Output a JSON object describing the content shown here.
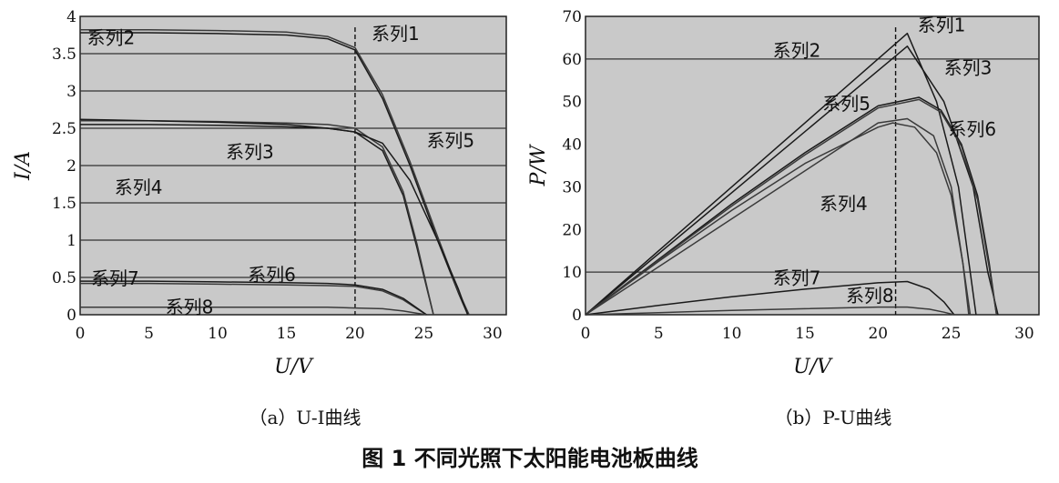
{
  "figure_caption": "图 1  不同光照下太阳能电池板曲线",
  "chart_data": [
    {
      "type": "line",
      "subcaption": "（a）U-I曲线",
      "xlabel": "U/V",
      "ylabel": "I/A",
      "xlim": [
        0,
        31
      ],
      "ylim": [
        0,
        4
      ],
      "xticks": [
        "0",
        "5",
        "10",
        "15",
        "20",
        "25",
        "30"
      ],
      "yticks": [
        "0",
        "0.5",
        "1",
        "1.5",
        "2",
        "2.5",
        "3",
        "3.5",
        "4"
      ],
      "grid": "horizontal",
      "vline_x": 20,
      "series": [
        {
          "name": "系列1",
          "x": [
            0,
            5,
            10,
            15,
            18,
            20,
            22,
            24,
            26,
            27.5,
            28.2
          ],
          "y": [
            3.78,
            3.78,
            3.77,
            3.75,
            3.7,
            3.55,
            2.9,
            2.0,
            1.0,
            0.3,
            0
          ]
        },
        {
          "name": "系列2",
          "x": [
            0,
            5,
            10,
            15,
            18,
            20,
            22,
            24,
            26,
            27.5,
            28.3
          ],
          "y": [
            3.82,
            3.82,
            3.81,
            3.79,
            3.73,
            3.58,
            2.95,
            2.05,
            1.05,
            0.32,
            0
          ]
        },
        {
          "name": "系列3",
          "x": [
            0,
            5,
            10,
            15,
            18,
            20,
            22,
            23.5,
            24.5,
            25.3,
            25.7
          ],
          "y": [
            2.55,
            2.55,
            2.54,
            2.52,
            2.5,
            2.45,
            2.2,
            1.6,
            0.9,
            0.3,
            0
          ]
        },
        {
          "name": "系列4",
          "x": [
            0,
            5,
            10,
            15,
            18,
            20,
            22,
            23.5,
            24.5,
            25.3,
            25.7
          ],
          "y": [
            2.6,
            2.6,
            2.59,
            2.57,
            2.55,
            2.5,
            2.25,
            1.65,
            0.95,
            0.32,
            0
          ]
        },
        {
          "name": "系列5",
          "x": [
            0,
            5,
            10,
            15,
            18,
            20,
            22,
            24,
            26,
            27.5,
            28.2
          ],
          "y": [
            2.62,
            2.6,
            2.58,
            2.55,
            2.5,
            2.45,
            2.3,
            1.8,
            1.0,
            0.35,
            0
          ]
        },
        {
          "name": "系列6",
          "x": [
            0,
            5,
            10,
            15,
            18,
            20,
            22,
            23.5,
            24.5,
            25.2
          ],
          "y": [
            0.42,
            0.42,
            0.41,
            0.4,
            0.39,
            0.38,
            0.32,
            0.2,
            0.08,
            0
          ]
        },
        {
          "name": "系列7",
          "x": [
            0,
            5,
            10,
            15,
            18,
            20,
            22,
            23.5,
            24.5,
            25.2
          ],
          "y": [
            0.45,
            0.45,
            0.44,
            0.43,
            0.42,
            0.4,
            0.34,
            0.22,
            0.09,
            0
          ]
        },
        {
          "name": "系列8",
          "x": [
            0,
            5,
            10,
            15,
            18,
            20,
            22,
            23.5,
            24.5,
            25.2
          ],
          "y": [
            0.1,
            0.1,
            0.1,
            0.1,
            0.1,
            0.09,
            0.08,
            0.05,
            0.02,
            0
          ]
        }
      ],
      "labels": [
        {
          "text": "系列2",
          "x": 0.5,
          "y": 3.63
        },
        {
          "text": "系列1",
          "x": 21.2,
          "y": 3.68
        },
        {
          "text": "系列5",
          "x": 25.2,
          "y": 2.25
        },
        {
          "text": "系列3",
          "x": 10.6,
          "y": 2.1
        },
        {
          "text": "系列4",
          "x": 2.5,
          "y": 1.62
        },
        {
          "text": "系列7",
          "x": 0.8,
          "y": 0.4
        },
        {
          "text": "系列6",
          "x": 12.2,
          "y": 0.45
        },
        {
          "text": "系列8",
          "x": 6.2,
          "y": 0.02
        }
      ]
    },
    {
      "type": "line",
      "subcaption": "（b）P-U曲线",
      "xlabel": "U/V",
      "ylabel": "P/W",
      "xlim": [
        0,
        31
      ],
      "ylim": [
        0,
        70
      ],
      "xticks": [
        "0",
        "5",
        "10",
        "15",
        "20",
        "25",
        "30"
      ],
      "yticks": [
        "0",
        "10",
        "20",
        "30",
        "40",
        "50",
        "60",
        "70"
      ],
      "grid": "horizontal-partial",
      "vline_x": 21.2,
      "series": [
        {
          "name": "系列1",
          "x": [
            0,
            22,
            24,
            25.5,
            26.3,
            26.7
          ],
          "y": [
            0,
            66,
            50,
            30,
            10,
            0
          ]
        },
        {
          "name": "系列2",
          "x": [
            0,
            20,
            22,
            23.8,
            25,
            25.8,
            26.3
          ],
          "y": [
            0,
            45,
            46,
            42,
            30,
            12,
            0
          ]
        },
        {
          "name": "系列3",
          "x": [
            0,
            22,
            24.5,
            26.5,
            27.5,
            28.2
          ],
          "y": [
            0,
            63,
            50,
            30,
            10,
            0
          ]
        },
        {
          "name": "系列4",
          "x": [
            0,
            5,
            10,
            15,
            20,
            21,
            22.5,
            24,
            25,
            25.8,
            26.2
          ],
          "y": [
            0,
            12.5,
            24.5,
            35.5,
            44,
            45,
            44,
            38,
            28,
            12,
            0
          ]
        },
        {
          "name": "系列5",
          "x": [
            0,
            5,
            10,
            15,
            20,
            22.8,
            24.3,
            25.7,
            26.8,
            27.6,
            28.1
          ],
          "y": [
            0,
            13,
            26,
            38,
            49,
            51,
            48,
            40,
            28,
            12,
            0
          ]
        },
        {
          "name": "系列6",
          "x": [
            0,
            5,
            10,
            15,
            20,
            22.8,
            24.3,
            25.7,
            26.8,
            27.6,
            28.1
          ],
          "y": [
            0,
            12.8,
            25.5,
            37.5,
            48.5,
            50.5,
            47.5,
            39.5,
            27,
            11,
            0
          ]
        },
        {
          "name": "系列7",
          "x": [
            0,
            5,
            10,
            15,
            20,
            22,
            23.5,
            24.5,
            25.2
          ],
          "y": [
            0,
            2.2,
            4.2,
            6,
            7.5,
            7.8,
            6,
            3,
            0
          ]
        },
        {
          "name": "系列8",
          "x": [
            0,
            5,
            10,
            15,
            20,
            22,
            23.5,
            24.5,
            25.2
          ],
          "y": [
            0,
            0.5,
            1,
            1.4,
            1.8,
            1.8,
            1.3,
            0.6,
            0
          ]
        }
      ],
      "labels": [
        {
          "text": "系列1",
          "x": 22.7,
          "y": 66.5
        },
        {
          "text": "系列2",
          "x": 12.8,
          "y": 60.5
        },
        {
          "text": "系列3",
          "x": 24.5,
          "y": 56.5
        },
        {
          "text": "系列5",
          "x": 16.2,
          "y": 48
        },
        {
          "text": "系列6",
          "x": 24.8,
          "y": 42
        },
        {
          "text": "系列4",
          "x": 16.0,
          "y": 24.5
        },
        {
          "text": "系列7",
          "x": 12.8,
          "y": 7.2
        },
        {
          "text": "系列8",
          "x": 17.8,
          "y": 3.0
        }
      ]
    }
  ]
}
